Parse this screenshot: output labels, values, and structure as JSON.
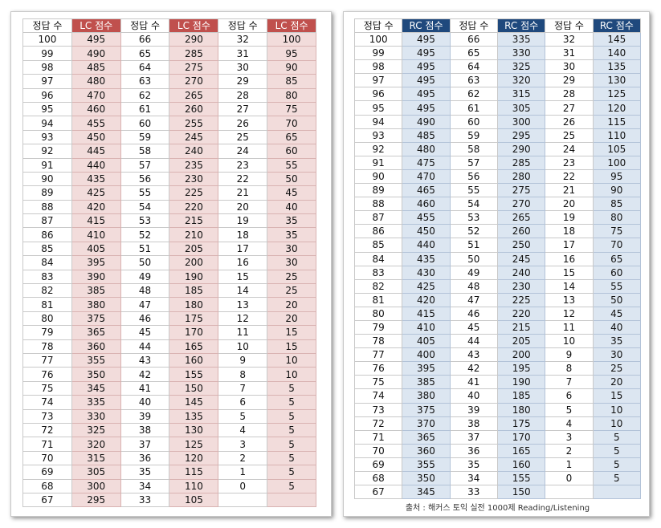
{
  "left": {
    "headers": [
      "정답 수",
      "LC 점수",
      "정답 수",
      "LC 점수",
      "정답 수",
      "LC 점수"
    ],
    "rows": [
      [
        100,
        495,
        66,
        290,
        32,
        100
      ],
      [
        99,
        490,
        65,
        285,
        31,
        95
      ],
      [
        98,
        485,
        64,
        275,
        30,
        90
      ],
      [
        97,
        480,
        63,
        270,
        29,
        85
      ],
      [
        96,
        470,
        62,
        265,
        28,
        80
      ],
      [
        95,
        460,
        61,
        260,
        27,
        75
      ],
      [
        94,
        455,
        60,
        255,
        26,
        70
      ],
      [
        93,
        450,
        59,
        245,
        25,
        65
      ],
      [
        92,
        445,
        58,
        240,
        24,
        60
      ],
      [
        91,
        440,
        57,
        235,
        23,
        55
      ],
      [
        90,
        435,
        56,
        230,
        22,
        50
      ],
      [
        89,
        425,
        55,
        225,
        21,
        45
      ],
      [
        88,
        420,
        54,
        220,
        20,
        40
      ],
      [
        87,
        415,
        53,
        215,
        19,
        35
      ],
      [
        86,
        410,
        52,
        210,
        18,
        35
      ],
      [
        85,
        405,
        51,
        205,
        17,
        30
      ],
      [
        84,
        395,
        50,
        200,
        16,
        30
      ],
      [
        83,
        390,
        49,
        190,
        15,
        25
      ],
      [
        82,
        385,
        48,
        185,
        14,
        25
      ],
      [
        81,
        380,
        47,
        180,
        13,
        20
      ],
      [
        80,
        375,
        46,
        175,
        12,
        20
      ],
      [
        79,
        365,
        45,
        170,
        11,
        15
      ],
      [
        78,
        360,
        44,
        165,
        10,
        15
      ],
      [
        77,
        355,
        43,
        160,
        9,
        10
      ],
      [
        76,
        350,
        42,
        155,
        8,
        10
      ],
      [
        75,
        345,
        41,
        150,
        7,
        5
      ],
      [
        74,
        335,
        40,
        145,
        6,
        5
      ],
      [
        73,
        330,
        39,
        135,
        5,
        5
      ],
      [
        72,
        325,
        38,
        130,
        4,
        5
      ],
      [
        71,
        320,
        37,
        125,
        3,
        5
      ],
      [
        70,
        315,
        36,
        120,
        2,
        5
      ],
      [
        69,
        305,
        35,
        115,
        1,
        5
      ],
      [
        68,
        300,
        34,
        110,
        0,
        5
      ],
      [
        67,
        295,
        33,
        105
      ]
    ]
  },
  "right": {
    "headers": [
      "정답 수",
      "RC 점수",
      "정답 수",
      "RC 점수",
      "정답 수",
      "RC 점수"
    ],
    "rows": [
      [
        100,
        495,
        66,
        335,
        32,
        145
      ],
      [
        99,
        495,
        65,
        330,
        31,
        140
      ],
      [
        98,
        495,
        64,
        325,
        30,
        135
      ],
      [
        97,
        495,
        63,
        320,
        29,
        130
      ],
      [
        96,
        495,
        62,
        315,
        28,
        125
      ],
      [
        95,
        495,
        61,
        305,
        27,
        120
      ],
      [
        94,
        490,
        60,
        300,
        26,
        115
      ],
      [
        93,
        485,
        59,
        295,
        25,
        110
      ],
      [
        92,
        480,
        58,
        290,
        24,
        105
      ],
      [
        91,
        475,
        57,
        285,
        23,
        100
      ],
      [
        90,
        470,
        56,
        280,
        22,
        95
      ],
      [
        89,
        465,
        55,
        275,
        21,
        90
      ],
      [
        88,
        460,
        54,
        270,
        20,
        85
      ],
      [
        87,
        455,
        53,
        265,
        19,
        80
      ],
      [
        86,
        450,
        52,
        260,
        18,
        75
      ],
      [
        85,
        440,
        51,
        250,
        17,
        70
      ],
      [
        84,
        435,
        50,
        245,
        16,
        65
      ],
      [
        83,
        430,
        49,
        240,
        15,
        60
      ],
      [
        82,
        425,
        48,
        230,
        14,
        55
      ],
      [
        81,
        420,
        47,
        225,
        13,
        50
      ],
      [
        80,
        415,
        46,
        220,
        12,
        45
      ],
      [
        79,
        410,
        45,
        215,
        11,
        40
      ],
      [
        78,
        405,
        44,
        205,
        10,
        35
      ],
      [
        77,
        400,
        43,
        200,
        9,
        30
      ],
      [
        76,
        395,
        42,
        195,
        8,
        25
      ],
      [
        75,
        385,
        41,
        190,
        7,
        20
      ],
      [
        74,
        380,
        40,
        185,
        6,
        15
      ],
      [
        73,
        375,
        39,
        180,
        5,
        10
      ],
      [
        72,
        370,
        38,
        175,
        4,
        10
      ],
      [
        71,
        365,
        37,
        170,
        3,
        5
      ],
      [
        70,
        360,
        36,
        165,
        2,
        5
      ],
      [
        69,
        355,
        35,
        160,
        1,
        5
      ],
      [
        68,
        350,
        34,
        155,
        0,
        5
      ],
      [
        67,
        345,
        33,
        150
      ]
    ],
    "source": "출처 : 해커스 토익 실전 1000제 Reading/Listening"
  }
}
